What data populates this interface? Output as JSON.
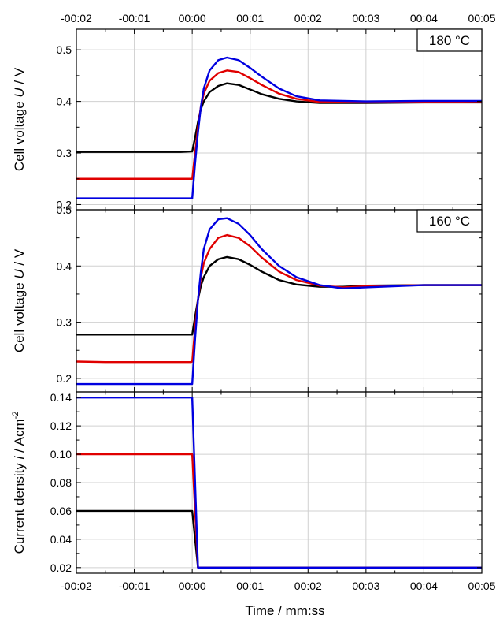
{
  "chart_data": {
    "type": "line",
    "x_axis": {
      "label": "Time / mm:ss",
      "range": [
        -2,
        5
      ],
      "ticks": [
        -2,
        -1,
        0,
        1,
        2,
        3,
        4,
        5
      ],
      "tick_labels": [
        "-00:02",
        "-00:01",
        "00:00",
        "00:01",
        "00:02",
        "00:03",
        "00:04",
        "00:05"
      ],
      "top_axis_mirrored": true,
      "grid": true
    },
    "panels": [
      {
        "id": "p180",
        "temperature_label": "180 °C",
        "ylabel_prefix": "Cell voltage ",
        "ylabel_symbol": "U",
        "ylabel_suffix": " / V",
        "ylim": [
          0.19,
          0.54
        ],
        "yticks": [
          0.2,
          0.3,
          0.4,
          0.5
        ],
        "ytick_labels": [
          "0.2",
          "0.3",
          "0.4",
          "0.5"
        ],
        "series": [
          {
            "color": "#000000",
            "points": [
              [
                -2,
                0.302
              ],
              [
                -1,
                0.302
              ],
              [
                -0.2,
                0.302
              ],
              [
                -0.02,
                0.303
              ],
              [
                0,
                0.303
              ],
              [
                0.05,
                0.33
              ],
              [
                0.1,
                0.36
              ],
              [
                0.15,
                0.385
              ],
              [
                0.2,
                0.4
              ],
              [
                0.3,
                0.418
              ],
              [
                0.45,
                0.43
              ],
              [
                0.6,
                0.435
              ],
              [
                0.8,
                0.432
              ],
              [
                1.0,
                0.423
              ],
              [
                1.2,
                0.414
              ],
              [
                1.5,
                0.405
              ],
              [
                1.8,
                0.4
              ],
              [
                2.2,
                0.397
              ],
              [
                3,
                0.397
              ],
              [
                4,
                0.398
              ],
              [
                5,
                0.398
              ]
            ]
          },
          {
            "color": "#e00000",
            "points": [
              [
                -2,
                0.25
              ],
              [
                -1,
                0.25
              ],
              [
                -0.2,
                0.25
              ],
              [
                -0.02,
                0.25
              ],
              [
                0,
                0.25
              ],
              [
                0.05,
                0.3
              ],
              [
                0.1,
                0.35
              ],
              [
                0.15,
                0.39
              ],
              [
                0.2,
                0.415
              ],
              [
                0.3,
                0.44
              ],
              [
                0.45,
                0.455
              ],
              [
                0.6,
                0.46
              ],
              [
                0.8,
                0.457
              ],
              [
                1.0,
                0.445
              ],
              [
                1.2,
                0.432
              ],
              [
                1.5,
                0.415
              ],
              [
                1.8,
                0.405
              ],
              [
                2.2,
                0.399
              ],
              [
                3,
                0.398
              ],
              [
                4,
                0.399
              ],
              [
                5,
                0.4
              ]
            ]
          },
          {
            "color": "#0000e0",
            "points": [
              [
                -2,
                0.212
              ],
              [
                -1,
                0.212
              ],
              [
                -0.2,
                0.212
              ],
              [
                -0.02,
                0.212
              ],
              [
                0,
                0.212
              ],
              [
                0.05,
                0.28
              ],
              [
                0.1,
                0.34
              ],
              [
                0.15,
                0.39
              ],
              [
                0.2,
                0.425
              ],
              [
                0.3,
                0.46
              ],
              [
                0.45,
                0.48
              ],
              [
                0.6,
                0.485
              ],
              [
                0.8,
                0.48
              ],
              [
                1.0,
                0.465
              ],
              [
                1.2,
                0.448
              ],
              [
                1.5,
                0.425
              ],
              [
                1.8,
                0.41
              ],
              [
                2.2,
                0.402
              ],
              [
                3,
                0.4
              ],
              [
                4,
                0.401
              ],
              [
                5,
                0.401
              ]
            ]
          }
        ]
      },
      {
        "id": "p160",
        "temperature_label": "160 °C",
        "ylabel_prefix": "Cell voltage ",
        "ylabel_symbol": "U",
        "ylabel_suffix": " / V",
        "ylim": [
          0.176,
          0.5
        ],
        "yticks": [
          0.2,
          0.3,
          0.4,
          0.5
        ],
        "ytick_labels": [
          "0.2",
          "0.3",
          "0.4",
          "0.5"
        ],
        "series": [
          {
            "color": "#000000",
            "points": [
              [
                -2,
                0.278
              ],
              [
                -1,
                0.278
              ],
              [
                -0.2,
                0.278
              ],
              [
                -0.02,
                0.278
              ],
              [
                0,
                0.278
              ],
              [
                0.05,
                0.31
              ],
              [
                0.1,
                0.34
              ],
              [
                0.15,
                0.365
              ],
              [
                0.2,
                0.38
              ],
              [
                0.3,
                0.4
              ],
              [
                0.45,
                0.412
              ],
              [
                0.6,
                0.416
              ],
              [
                0.8,
                0.412
              ],
              [
                1.0,
                0.402
              ],
              [
                1.2,
                0.39
              ],
              [
                1.5,
                0.375
              ],
              [
                1.8,
                0.367
              ],
              [
                2.2,
                0.363
              ],
              [
                2.6,
                0.363
              ],
              [
                3,
                0.365
              ],
              [
                4,
                0.366
              ],
              [
                5,
                0.366
              ]
            ]
          },
          {
            "color": "#e00000",
            "points": [
              [
                -2,
                0.23
              ],
              [
                -1.5,
                0.229
              ],
              [
                -1,
                0.229
              ],
              [
                -0.2,
                0.229
              ],
              [
                -0.02,
                0.229
              ],
              [
                0,
                0.23
              ],
              [
                0.05,
                0.29
              ],
              [
                0.1,
                0.34
              ],
              [
                0.15,
                0.38
              ],
              [
                0.2,
                0.405
              ],
              [
                0.3,
                0.43
              ],
              [
                0.45,
                0.45
              ],
              [
                0.6,
                0.455
              ],
              [
                0.8,
                0.45
              ],
              [
                1.0,
                0.435
              ],
              [
                1.2,
                0.415
              ],
              [
                1.5,
                0.39
              ],
              [
                1.8,
                0.375
              ],
              [
                2.2,
                0.365
              ],
              [
                2.6,
                0.362
              ],
              [
                3,
                0.364
              ],
              [
                4,
                0.366
              ],
              [
                5,
                0.366
              ]
            ]
          },
          {
            "color": "#0000e0",
            "points": [
              [
                -2,
                0.19
              ],
              [
                -1,
                0.19
              ],
              [
                -0.2,
                0.19
              ],
              [
                -0.02,
                0.19
              ],
              [
                0,
                0.19
              ],
              [
                0.05,
                0.27
              ],
              [
                0.1,
                0.34
              ],
              [
                0.15,
                0.39
              ],
              [
                0.2,
                0.43
              ],
              [
                0.3,
                0.465
              ],
              [
                0.45,
                0.483
              ],
              [
                0.6,
                0.485
              ],
              [
                0.8,
                0.475
              ],
              [
                1.0,
                0.455
              ],
              [
                1.2,
                0.43
              ],
              [
                1.5,
                0.4
              ],
              [
                1.8,
                0.38
              ],
              [
                2.2,
                0.366
              ],
              [
                2.6,
                0.36
              ],
              [
                3,
                0.362
              ],
              [
                4,
                0.366
              ],
              [
                5,
                0.366
              ]
            ]
          }
        ]
      },
      {
        "id": "pcur",
        "temperature_label": "",
        "ylabel_prefix": "Current density ",
        "ylabel_symbol": "i",
        "ylabel_suffix": " / Acm",
        "ylabel_superscript": "-2",
        "ylim": [
          0.016,
          0.144
        ],
        "yticks": [
          0.02,
          0.04,
          0.06,
          0.08,
          0.1,
          0.12,
          0.14
        ],
        "ytick_labels": [
          "0.02",
          "0.04",
          "0.06",
          "0.08",
          "0.10",
          "0.12",
          "0.14"
        ],
        "series": [
          {
            "color": "#000000",
            "points": [
              [
                -2,
                0.06
              ],
              [
                -0.03,
                0.06
              ],
              [
                0,
                0.06
              ],
              [
                0.1,
                0.02
              ],
              [
                5,
                0.02
              ]
            ]
          },
          {
            "color": "#e00000",
            "points": [
              [
                -2,
                0.1
              ],
              [
                -0.03,
                0.1
              ],
              [
                0,
                0.1
              ],
              [
                0.1,
                0.02
              ],
              [
                5,
                0.02
              ]
            ]
          },
          {
            "color": "#0000e0",
            "points": [
              [
                -2,
                0.14
              ],
              [
                -0.03,
                0.14
              ],
              [
                0,
                0.14
              ],
              [
                0.1,
                0.02
              ],
              [
                5,
                0.02
              ]
            ]
          }
        ]
      }
    ]
  }
}
